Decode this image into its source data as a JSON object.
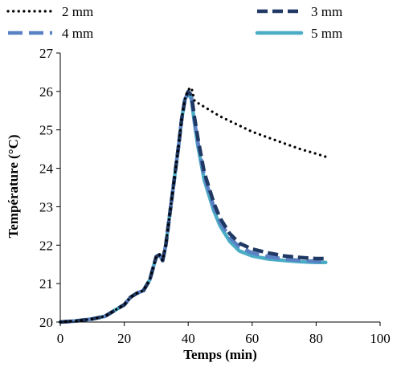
{
  "chart_data": {
    "type": "line",
    "title": "",
    "xlabel": "Temps (min)",
    "ylabel": "Température (°C)",
    "xlim": [
      0,
      100
    ],
    "ylim": [
      20,
      27
    ],
    "x_ticks": [
      0,
      20,
      40,
      60,
      80,
      100
    ],
    "y_ticks": [
      20,
      21,
      22,
      23,
      24,
      25,
      26,
      27
    ],
    "grid": false,
    "legend_position": "top",
    "series": [
      {
        "name": "2 mm",
        "color": "#000000",
        "style": "dotted",
        "points": [
          [
            0,
            20
          ],
          [
            5,
            20.03
          ],
          [
            10,
            20.08
          ],
          [
            14,
            20.15
          ],
          [
            18,
            20.35
          ],
          [
            20,
            20.45
          ],
          [
            22,
            20.65
          ],
          [
            24,
            20.75
          ],
          [
            26,
            20.82
          ],
          [
            28,
            21.1
          ],
          [
            30,
            21.7
          ],
          [
            31,
            21.75
          ],
          [
            32,
            21.6
          ],
          [
            33,
            22
          ],
          [
            35,
            23.3
          ],
          [
            37,
            24.6
          ],
          [
            38,
            25.3
          ],
          [
            39,
            25.8
          ],
          [
            40,
            26.05
          ],
          [
            41,
            26.1
          ],
          [
            42,
            25.75
          ],
          [
            45,
            25.6
          ],
          [
            50,
            25.35
          ],
          [
            55,
            25.15
          ],
          [
            60,
            24.95
          ],
          [
            65,
            24.8
          ],
          [
            70,
            24.65
          ],
          [
            75,
            24.5
          ],
          [
            80,
            24.38
          ],
          [
            83,
            24.3
          ]
        ]
      },
      {
        "name": "3 mm",
        "color": "#1f3864",
        "style": "dashed",
        "points": [
          [
            0,
            20
          ],
          [
            5,
            20.03
          ],
          [
            10,
            20.08
          ],
          [
            14,
            20.15
          ],
          [
            18,
            20.35
          ],
          [
            20,
            20.45
          ],
          [
            22,
            20.65
          ],
          [
            24,
            20.75
          ],
          [
            26,
            20.82
          ],
          [
            28,
            21.1
          ],
          [
            30,
            21.7
          ],
          [
            31,
            21.75
          ],
          [
            32,
            21.6
          ],
          [
            33,
            22
          ],
          [
            35,
            23.3
          ],
          [
            37,
            24.6
          ],
          [
            38,
            25.3
          ],
          [
            39,
            25.8
          ],
          [
            40,
            26
          ],
          [
            41,
            25.9
          ],
          [
            42,
            25.3
          ],
          [
            43,
            24.8
          ],
          [
            45,
            23.9
          ],
          [
            48,
            23.1
          ],
          [
            50,
            22.7
          ],
          [
            53,
            22.3
          ],
          [
            56,
            22.05
          ],
          [
            60,
            21.9
          ],
          [
            65,
            21.8
          ],
          [
            70,
            21.72
          ],
          [
            75,
            21.68
          ],
          [
            80,
            21.65
          ],
          [
            83,
            21.65
          ]
        ]
      },
      {
        "name": "4 mm",
        "color": "#5a81c4",
        "style": "long-dash",
        "points": [
          [
            0,
            20
          ],
          [
            5,
            20.03
          ],
          [
            10,
            20.08
          ],
          [
            14,
            20.15
          ],
          [
            18,
            20.35
          ],
          [
            20,
            20.45
          ],
          [
            22,
            20.65
          ],
          [
            24,
            20.75
          ],
          [
            26,
            20.82
          ],
          [
            28,
            21.1
          ],
          [
            30,
            21.7
          ],
          [
            31,
            21.75
          ],
          [
            32,
            21.6
          ],
          [
            33,
            22
          ],
          [
            35,
            23.3
          ],
          [
            37,
            24.6
          ],
          [
            38,
            25.3
          ],
          [
            39,
            25.8
          ],
          [
            40,
            25.95
          ],
          [
            41,
            25.85
          ],
          [
            42,
            25.2
          ],
          [
            43,
            24.7
          ],
          [
            45,
            23.8
          ],
          [
            48,
            23
          ],
          [
            50,
            22.6
          ],
          [
            53,
            22.2
          ],
          [
            56,
            21.95
          ],
          [
            60,
            21.8
          ],
          [
            65,
            21.7
          ],
          [
            70,
            21.64
          ],
          [
            75,
            21.6
          ],
          [
            80,
            21.58
          ],
          [
            83,
            21.57
          ]
        ]
      },
      {
        "name": "5 mm",
        "color": "#4bacc6",
        "style": "solid",
        "points": [
          [
            0,
            20
          ],
          [
            5,
            20.03
          ],
          [
            10,
            20.08
          ],
          [
            14,
            20.15
          ],
          [
            18,
            20.35
          ],
          [
            20,
            20.45
          ],
          [
            22,
            20.65
          ],
          [
            24,
            20.75
          ],
          [
            26,
            20.82
          ],
          [
            28,
            21.1
          ],
          [
            30,
            21.7
          ],
          [
            31,
            21.75
          ],
          [
            32,
            21.6
          ],
          [
            33,
            22
          ],
          [
            35,
            23.3
          ],
          [
            37,
            24.6
          ],
          [
            38,
            25.3
          ],
          [
            39,
            25.8
          ],
          [
            40,
            25.95
          ],
          [
            41,
            25.8
          ],
          [
            42,
            25.15
          ],
          [
            43,
            24.6
          ],
          [
            45,
            23.7
          ],
          [
            48,
            22.9
          ],
          [
            50,
            22.5
          ],
          [
            53,
            22.1
          ],
          [
            56,
            21.85
          ],
          [
            60,
            21.72
          ],
          [
            65,
            21.64
          ],
          [
            70,
            21.6
          ],
          [
            75,
            21.57
          ],
          [
            80,
            21.55
          ],
          [
            83,
            21.55
          ]
        ]
      }
    ]
  }
}
